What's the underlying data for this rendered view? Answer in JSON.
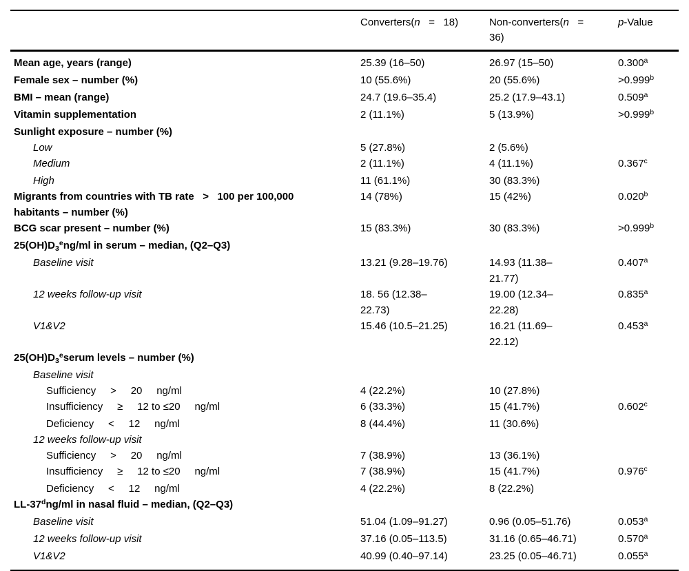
{
  "page": {
    "background_color": "#ffffff",
    "text_color": "#000000",
    "rule_color": "#000000"
  },
  "table": {
    "header": {
      "col1": "",
      "col2": {
        "pre": "Converters(",
        "n": "n",
        "eq": "   =   ",
        "post": "18)"
      },
      "col3": {
        "pre": "Non-converters(",
        "n": "n",
        "eq": "   =   ",
        "post": "36)"
      },
      "col4": {
        "p": "p",
        "rest": "-Value"
      }
    },
    "rows": [
      {
        "label": "Mean age, years (range)",
        "c1": "25.39 (16–50)",
        "c2": "26.97 (15–50)",
        "p": "0.300",
        "p_sup": "a"
      },
      {
        "label": "Female sex – number (%)",
        "c1": "10 (55.6%)",
        "c2": "20 (55.6%)",
        "p": ">0.999",
        "p_sup": "b"
      },
      {
        "label": "BMI – mean (range)",
        "c1": "24.7 (19.6–35.4)",
        "c2": "25.2 (17.9–43.1)",
        "p": "0.509",
        "p_sup": "a"
      },
      {
        "label": "Vitamin supplementation",
        "c1": "2 (11.1%)",
        "c2": "5 (13.9%)",
        "p": ">0.999",
        "p_sup": "b"
      },
      {
        "label": "Sunlight exposure – number (%)"
      },
      {
        "label": "Low",
        "c1": "5 (27.8%)",
        "c2": "2 (5.6%)"
      },
      {
        "label": "Medium",
        "c1": "2 (11.1%)",
        "c2": "4 (11.1%)",
        "p": "0.367",
        "p_sup": "c"
      },
      {
        "label": "High",
        "c1": "11 (61.1%)",
        "c2": "30 (83.3%)"
      },
      {
        "label": "Migrants from countries with TB rate   >   100 per 100,000 habitants – number (%)",
        "c1": "14 (78%)",
        "c2": "15 (42%)",
        "p": "0.020",
        "p_sup": "b"
      },
      {
        "label": "BCG scar present – number (%)",
        "c1": "15 (83.3%)",
        "c2": "30 (83.3%)",
        "p": ">0.999",
        "p_sup": "b"
      },
      {
        "label_pre": "25(OH)D",
        "label_sub": "3",
        "label_sup": "e",
        "label_post": "ng/ml in serum – median, (Q2–Q3)"
      },
      {
        "label": "Baseline visit",
        "c1": "13.21 (9.28–19.76)",
        "c2": "14.93 (11.38–21.77)",
        "p": "0.407",
        "p_sup": "a"
      },
      {
        "label": "12 weeks follow-up visit",
        "c1": "18. 56 (12.38–22.73)",
        "c2": "19.00 (12.34–22.28)",
        "p": "0.835",
        "p_sup": "a"
      },
      {
        "label": "V1&V2",
        "c1": "15.46 (10.5–21.25)",
        "c2": "16.21 (11.69–22.12)",
        "p": "0.453",
        "p_sup": "a"
      },
      {
        "label_pre": "25(OH)D",
        "label_sub": "3",
        "label_sup": "e",
        "label_post": "serum levels – number (%)"
      },
      {
        "label": "Baseline visit"
      },
      {
        "label": "Sufficiency     >     20     ng/ml",
        "c1": "4 (22.2%)",
        "c2": "10 (27.8%)"
      },
      {
        "label": "Insufficiency     ≥     12 to ≤20     ng/ml",
        "c1": "6 (33.3%)",
        "c2": "15 (41.7%)",
        "p": "0.602",
        "p_sup": "c"
      },
      {
        "label": "Deficiency     <     12     ng/ml",
        "c1": "8 (44.4%)",
        "c2": "11 (30.6%)"
      },
      {
        "label": "12 weeks follow-up visit"
      },
      {
        "label": "Sufficiency     >     20     ng/ml",
        "c1": "7 (38.9%)",
        "c2": "13 (36.1%)"
      },
      {
        "label": "Insufficiency     ≥     12 to ≤20     ng/ml",
        "c1": "7 (38.9%)",
        "c2": "15 (41.7%)",
        "p": "0.976",
        "p_sup": "c"
      },
      {
        "label": "Deficiency     <     12     ng/ml",
        "c1": "4 (22.2%)",
        "c2": "8 (22.2%)"
      },
      {
        "label_pre": "LL-37",
        "label_sup": "d",
        "label_post": "ng/ml in nasal fluid – median, (Q2–Q3)"
      },
      {
        "label": "Baseline visit",
        "c1": "51.04 (1.09–91.27)",
        "c2": "0.96 (0.05–51.76)",
        "p": "0.053",
        "p_sup": "a"
      },
      {
        "label": "12 weeks follow-up visit",
        "c1": "37.16 (0.05–113.5)",
        "c2": "31.16 (0.65–46.71)",
        "p": "0.570",
        "p_sup": "a"
      },
      {
        "label": "V1&V2",
        "c1": "40.99 (0.40–97.14)",
        "c2": "23.25 (0.05–46.71)",
        "p": "0.055",
        "p_sup": "a"
      }
    ]
  }
}
